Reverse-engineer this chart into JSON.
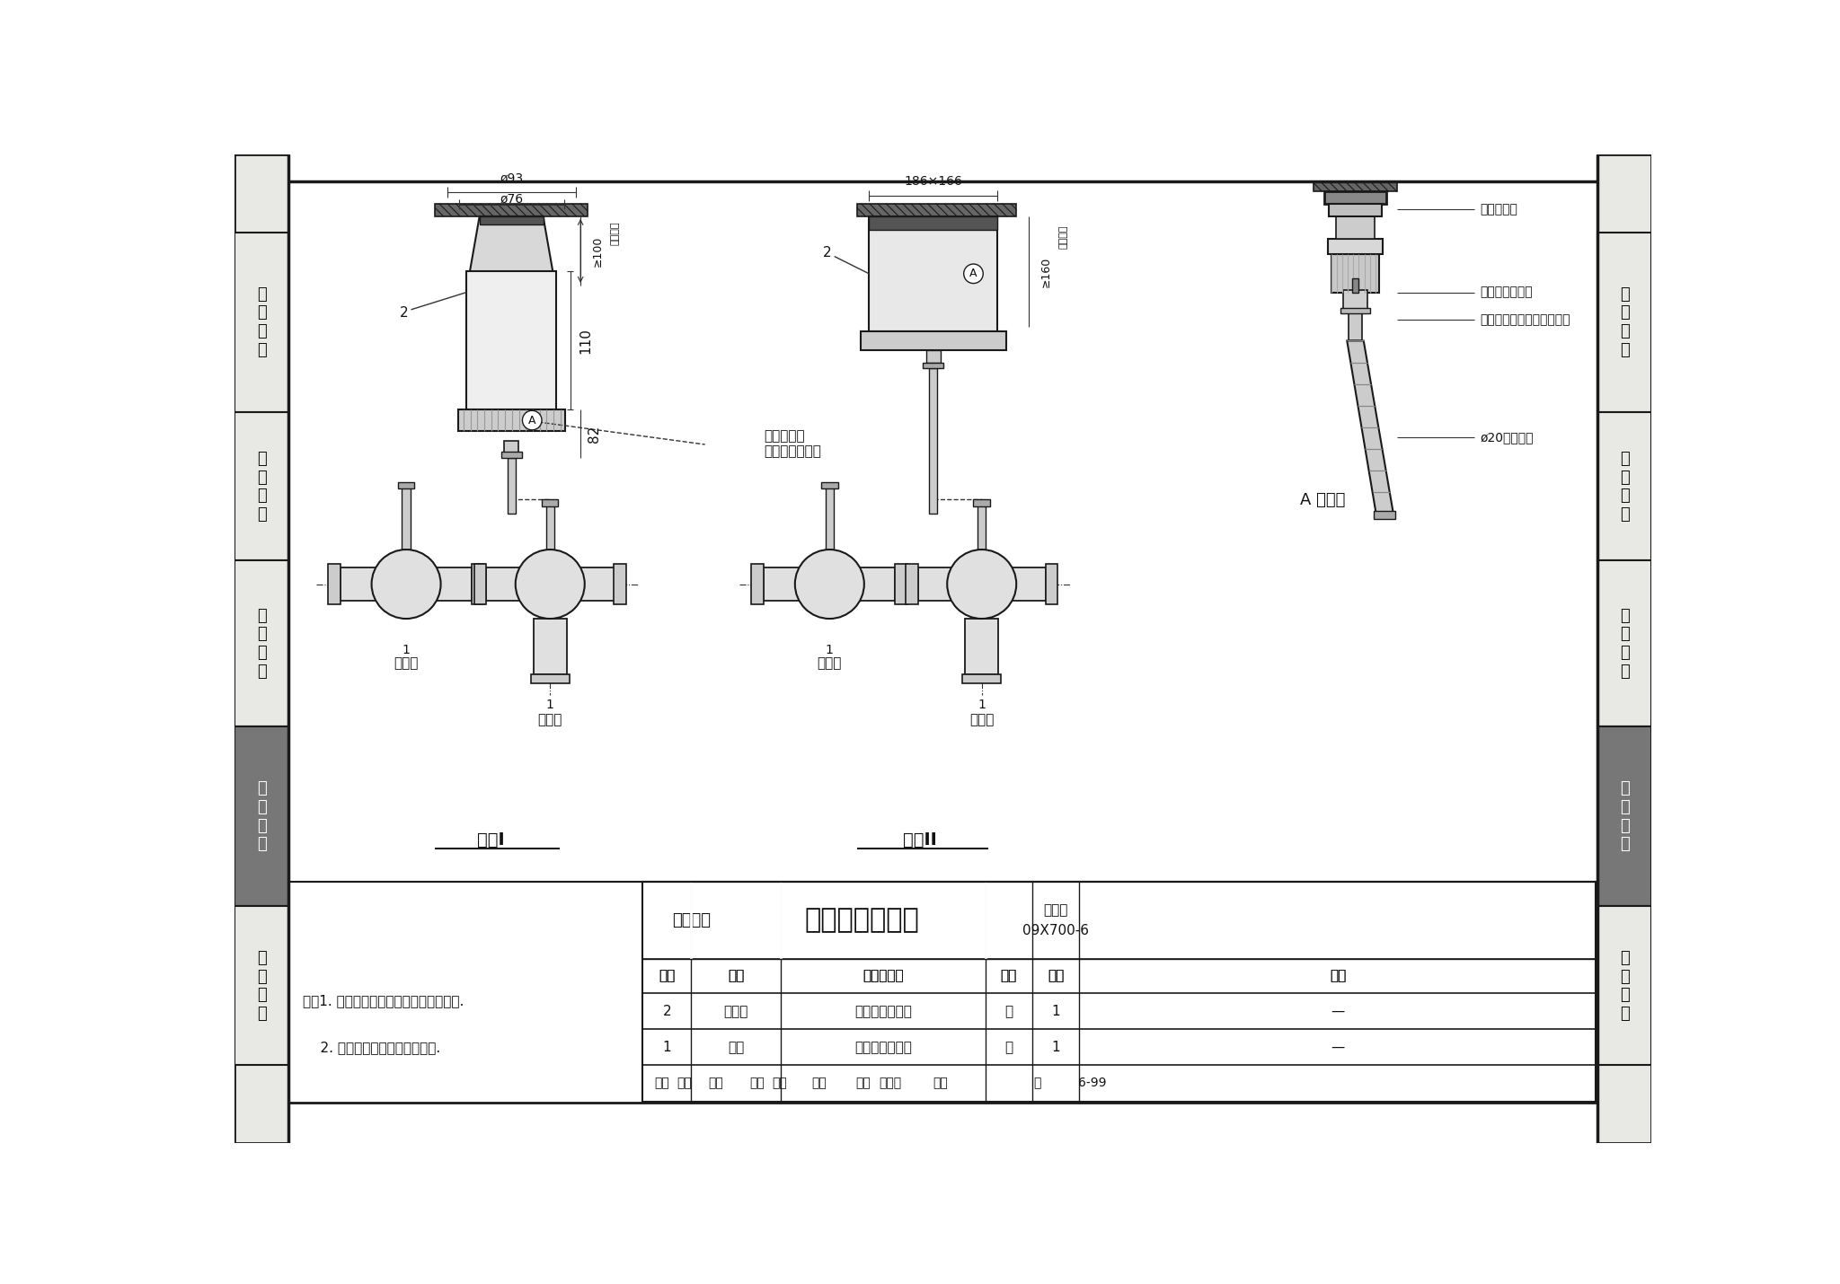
{
  "page_bg": "#ffffff",
  "content_bg": "#ffffff",
  "border_color": "#1a1a1a",
  "title": "阀门执行器安装",
  "page_num": "6-99",
  "atlas_num": "09X700-6",
  "dept": "设备安装",
  "left_tabs": [
    "机\n房\n工\n程",
    "供\n电\n电\n源",
    "缆\n线\n敷\n设",
    "设\n备\n安\n装",
    "防\n雷\n接\n地"
  ],
  "right_tabs": [
    "机\n房\n工\n程",
    "供\n电\n电\n源",
    "缆\n线\n敷\n设",
    "设\n备\n安\n装",
    "防\n雷\n接\n地"
  ],
  "tab_highlight": 3,
  "notes_line1": "注：1. 阀门执行器、阀体由工程设计确定.",
  "notes_line2": "    2. 阀门执行器的尺寸仅供参考.",
  "table_headers": [
    "编号",
    "名称",
    "型号及规格",
    "单位",
    "数量",
    "备注"
  ],
  "table_rows": [
    [
      "1",
      "阀体",
      "由工程设计确定",
      "个",
      "1",
      "—"
    ],
    [
      "2",
      "执行器",
      "由工程设计确定",
      "套",
      "1",
      "—"
    ]
  ],
  "scheme1_label": "方案I",
  "scheme2_label": "方案II",
  "annotation1_line1": "穿控制线用",
  "annotation1_line2": "金属软管接头处",
  "annotation2": "A 放大图",
  "right_labels": [
    "阀门驱动器",
    "金属软管连接头",
    "包括锁紧螺母由安装者自备",
    "ø20金属软管"
  ]
}
